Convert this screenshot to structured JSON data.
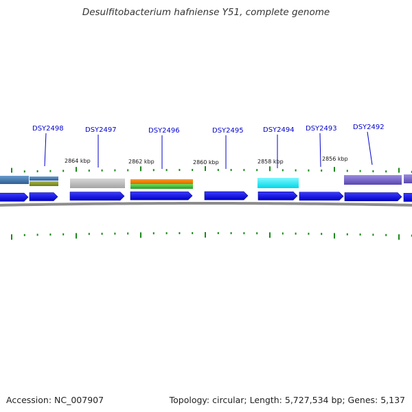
{
  "title": "Desulfitobacterium hafniense Y51, complete genome",
  "accession": "Accession: NC_007907",
  "summary": "Topology: circular; Length: 5,727,534 bp; Genes: 5,137",
  "colors": {
    "gene_label": "#0000cc",
    "cds_arrow": "#0a0af0",
    "backbone": "#8c8c8c",
    "tick": "#1a8a1a"
  },
  "genes": [
    {
      "label": "DSY2498"
    },
    {
      "label": "DSY2497"
    },
    {
      "label": "DSY2496"
    },
    {
      "label": "DSY2495"
    },
    {
      "label": "DSY2494"
    },
    {
      "label": "DSY2493"
    },
    {
      "label": "DSY2492"
    }
  ],
  "kbp_labels": [
    "2864 kbp",
    "2862 kbp",
    "2860 kbp",
    "2858 kbp",
    "2856 kbp"
  ]
}
